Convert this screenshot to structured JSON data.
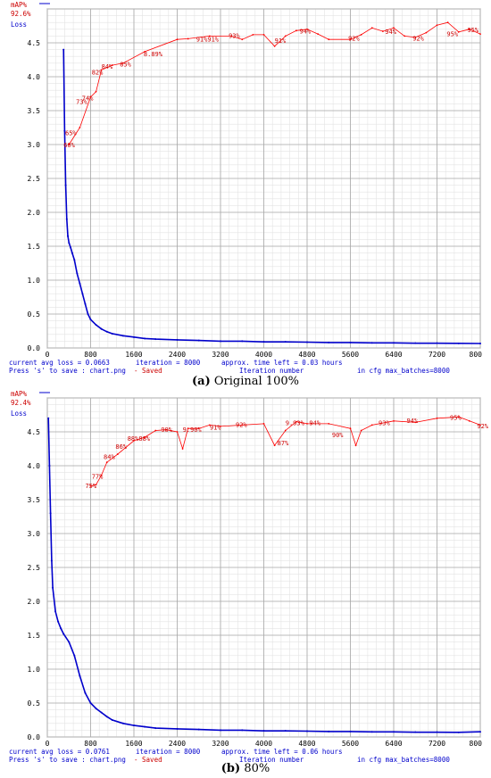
{
  "chart_data": [
    {
      "type": "line",
      "map_label": "mAP%",
      "map_value": "92.6%",
      "loss_label": "Loss",
      "y_ticks": [
        "0.0",
        "0.5",
        "1.0",
        "1.5",
        "2.0",
        "2.5",
        "3.0",
        "3.5",
        "4.0",
        "4.5"
      ],
      "x_ticks": [
        "0",
        "800",
        "1600",
        "2400",
        "3200",
        "4000",
        "4800",
        "5600",
        "6400",
        "7200",
        "800"
      ],
      "ylim": [
        0,
        5.0
      ],
      "xlim": [
        0,
        8000
      ],
      "series": [
        {
          "name": "Loss",
          "color": "#0000cc",
          "x": [
            300,
            320,
            340,
            360,
            380,
            400,
            430,
            460,
            500,
            550,
            600,
            650,
            700,
            750,
            800,
            900,
            1000,
            1100,
            1200,
            1400,
            1600,
            1800,
            2000,
            2400,
            2800,
            3200,
            3600,
            4000,
            4400,
            4800,
            5200,
            5600,
            6000,
            6400,
            6800,
            7200,
            7600,
            8000
          ],
          "y": [
            4.4,
            3.2,
            2.4,
            1.9,
            1.65,
            1.55,
            1.48,
            1.4,
            1.3,
            1.1,
            0.95,
            0.8,
            0.65,
            0.5,
            0.42,
            0.34,
            0.28,
            0.24,
            0.21,
            0.18,
            0.16,
            0.14,
            0.13,
            0.12,
            0.11,
            0.1,
            0.1,
            0.09,
            0.09,
            0.085,
            0.08,
            0.08,
            0.075,
            0.075,
            0.07,
            0.07,
            0.068,
            0.066
          ]
        },
        {
          "name": "mAP%",
          "color": "#ff0000",
          "x": [
            400,
            600,
            800,
            900,
            1000,
            1200,
            1400,
            1800,
            2400,
            2600,
            3000,
            3400,
            3600,
            3800,
            4000,
            4200,
            4400,
            4600,
            4800,
            5000,
            5200,
            5600,
            5800,
            6000,
            6200,
            6400,
            6600,
            6800,
            7000,
            7200,
            7400,
            7600,
            7800,
            8000
          ],
          "y": [
            3.0,
            3.25,
            3.7,
            3.78,
            4.1,
            4.17,
            4.2,
            4.37,
            4.55,
            4.56,
            4.6,
            4.6,
            4.55,
            4.62,
            4.62,
            4.45,
            4.6,
            4.68,
            4.7,
            4.63,
            4.55,
            4.55,
            4.62,
            4.72,
            4.67,
            4.72,
            4.6,
            4.58,
            4.65,
            4.76,
            4.8,
            4.66,
            4.7,
            4.63
          ]
        }
      ],
      "map_point_labels": [
        {
          "x": 300,
          "y": 2.96,
          "text": "60%"
        },
        {
          "x": 330,
          "y": 3.14,
          "text": "65%"
        },
        {
          "x": 530,
          "y": 3.6,
          "text": "73%"
        },
        {
          "x": 640,
          "y": 3.65,
          "text": "74%"
        },
        {
          "x": 820,
          "y": 4.03,
          "text": "82%"
        },
        {
          "x": 1000,
          "y": 4.12,
          "text": "84%"
        },
        {
          "x": 1340,
          "y": 4.15,
          "text": "85%"
        },
        {
          "x": 1780,
          "y": 4.3,
          "text": "8.89%"
        },
        {
          "x": 2750,
          "y": 4.52,
          "text": "91%91%"
        },
        {
          "x": 3350,
          "y": 4.57,
          "text": "93%"
        },
        {
          "x": 4200,
          "y": 4.5,
          "text": "91%"
        },
        {
          "x": 4660,
          "y": 4.64,
          "text": "94%"
        },
        {
          "x": 5560,
          "y": 4.53,
          "text": "92%"
        },
        {
          "x": 6240,
          "y": 4.63,
          "text": "94%"
        },
        {
          "x": 6750,
          "y": 4.53,
          "text": "92%"
        },
        {
          "x": 7380,
          "y": 4.6,
          "text": "95%"
        },
        {
          "x": 7760,
          "y": 4.66,
          "text": "95%"
        }
      ],
      "status_line_1": {
        "avg_loss": "current avg loss = 0.0663",
        "iteration": "iteration = 8000",
        "time_left": "approx. time left = 0.03 hours"
      },
      "status_line_2": {
        "press": "Press 's' to save : chart.png",
        "saved": "- Saved",
        "xlabel": "Iteration number",
        "max_batches": "in cfg max_batches=8000"
      },
      "caption_letter": "(a)",
      "caption_text": " Original 100%"
    },
    {
      "type": "line",
      "map_label": "mAP%",
      "map_value": "92.4%",
      "loss_label": "Loss",
      "y_ticks": [
        "0.0",
        "0.5",
        "1.0",
        "1.5",
        "2.0",
        "2.5",
        "3.0",
        "3.5",
        "4.0",
        "4.5"
      ],
      "x_ticks": [
        "0",
        "800",
        "1600",
        "2400",
        "3200",
        "4000",
        "4800",
        "5600",
        "6400",
        "7200",
        "800"
      ],
      "ylim": [
        0,
        5.0
      ],
      "xlim": [
        0,
        8000
      ],
      "series": [
        {
          "name": "Loss",
          "color": "#0000cc",
          "x": [
            20,
            40,
            60,
            80,
            100,
            150,
            200,
            250,
            300,
            400,
            500,
            600,
            700,
            800,
            900,
            1000,
            1100,
            1200,
            1400,
            1600,
            1800,
            2000,
            2400,
            2800,
            3200,
            3600,
            4000,
            4400,
            4800,
            5200,
            5600,
            6000,
            6400,
            6800,
            7200,
            7600,
            8000
          ],
          "y": [
            4.7,
            4.0,
            3.3,
            2.6,
            2.2,
            1.85,
            1.7,
            1.6,
            1.52,
            1.4,
            1.2,
            0.9,
            0.65,
            0.5,
            0.42,
            0.36,
            0.3,
            0.25,
            0.2,
            0.17,
            0.15,
            0.13,
            0.12,
            0.11,
            0.1,
            0.1,
            0.09,
            0.09,
            0.085,
            0.08,
            0.08,
            0.075,
            0.075,
            0.07,
            0.07,
            0.068,
            0.076
          ]
        },
        {
          "name": "mAP%",
          "color": "#ff0000",
          "x": [
            800,
            900,
            1000,
            1100,
            1300,
            1600,
            1800,
            2000,
            2200,
            2400,
            2500,
            2600,
            2800,
            3000,
            3200,
            3600,
            4000,
            4200,
            4400,
            4600,
            4800,
            5200,
            5600,
            5700,
            5800,
            6000,
            6400,
            6800,
            7200,
            7600,
            7800,
            8000
          ],
          "y": [
            3.7,
            3.72,
            3.86,
            4.05,
            4.17,
            4.37,
            4.42,
            4.52,
            4.53,
            4.5,
            4.25,
            4.55,
            4.55,
            4.6,
            4.58,
            4.6,
            4.62,
            4.3,
            4.52,
            4.65,
            4.62,
            4.62,
            4.55,
            4.3,
            4.52,
            4.6,
            4.66,
            4.64,
            4.7,
            4.72,
            4.66,
            4.6
          ]
        }
      ],
      "map_point_labels": [
        {
          "x": 700,
          "y": 3.67,
          "text": "75%"
        },
        {
          "x": 820,
          "y": 3.81,
          "text": "77%"
        },
        {
          "x": 1040,
          "y": 4.1,
          "text": "84%"
        },
        {
          "x": 1260,
          "y": 4.25,
          "text": "86%"
        },
        {
          "x": 1480,
          "y": 4.37,
          "text": "88%88%"
        },
        {
          "x": 2100,
          "y": 4.5,
          "text": "90%"
        },
        {
          "x": 2500,
          "y": 4.5,
          "text": "9.90%"
        },
        {
          "x": 3000,
          "y": 4.53,
          "text": "91%"
        },
        {
          "x": 3480,
          "y": 4.57,
          "text": "92%"
        },
        {
          "x": 4400,
          "y": 4.6,
          "text": "9.93%"
        },
        {
          "x": 4840,
          "y": 4.6,
          "text": "94%"
        },
        {
          "x": 4250,
          "y": 4.3,
          "text": "87%"
        },
        {
          "x": 5260,
          "y": 4.42,
          "text": "90%"
        },
        {
          "x": 6120,
          "y": 4.6,
          "text": "93%"
        },
        {
          "x": 6640,
          "y": 4.63,
          "text": "94%"
        },
        {
          "x": 7440,
          "y": 4.68,
          "text": "95%"
        },
        {
          "x": 7940,
          "y": 4.55,
          "text": "92%"
        }
      ],
      "status_line_1": {
        "avg_loss": "current avg loss = 0.0761",
        "iteration": "iteration = 8000",
        "time_left": "approx. time left = 0.06 hours"
      },
      "status_line_2": {
        "press": "Press 's' to save : chart.png",
        "saved": "- Saved",
        "xlabel": "Iteration number",
        "max_batches": "in cfg max_batches=8000"
      },
      "caption_letter": "(b)",
      "caption_text": " 80%"
    }
  ]
}
